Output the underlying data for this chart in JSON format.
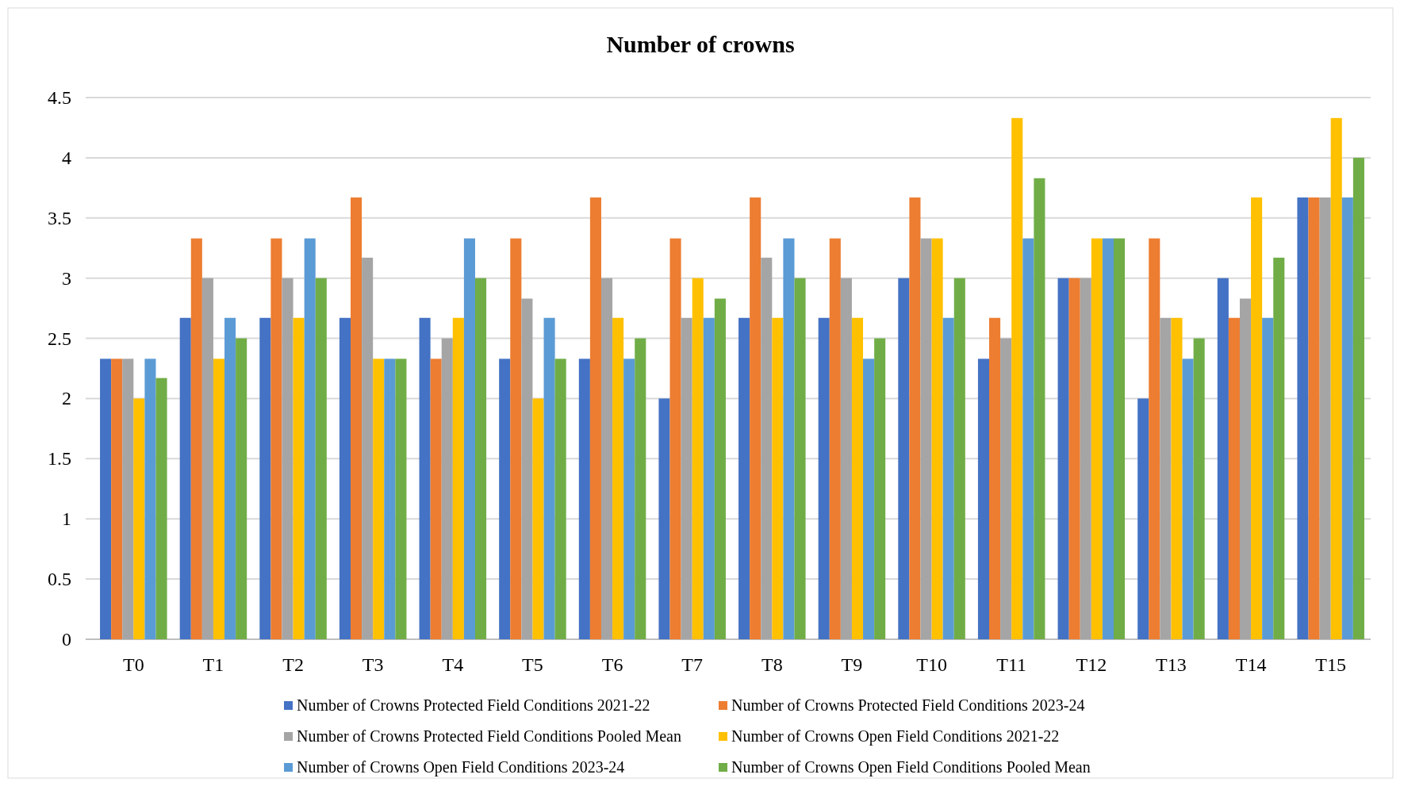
{
  "chart_data": {
    "type": "bar",
    "title": "Number of crowns",
    "categories": [
      "T0",
      "T1",
      "T2",
      "T3",
      "T4",
      "T5",
      "T6",
      "T7",
      "T8",
      "T9",
      "T10",
      "T11",
      "T12",
      "T13",
      "T14",
      "T15"
    ],
    "series": [
      {
        "name": "Number of Crowns Protected Field Conditions 2021-22",
        "color": "#4472c4",
        "values": [
          2.33,
          2.67,
          2.67,
          2.67,
          2.67,
          2.33,
          2.33,
          2.0,
          2.67,
          2.67,
          3.0,
          2.33,
          3.0,
          2.0,
          3.0,
          3.67
        ]
      },
      {
        "name": "Number of Crowns Protected Field Conditions 2023-24",
        "color": "#ed7d31",
        "values": [
          2.33,
          3.33,
          3.33,
          3.67,
          2.33,
          3.33,
          3.67,
          3.33,
          3.67,
          3.33,
          3.67,
          2.67,
          3.0,
          3.33,
          2.67,
          3.67
        ]
      },
      {
        "name": "Number of Crowns Protected Field Conditions Pooled Mean",
        "color": "#a5a5a5",
        "values": [
          2.33,
          3.0,
          3.0,
          3.17,
          2.5,
          2.83,
          3.0,
          2.67,
          3.17,
          3.0,
          3.33,
          2.5,
          3.0,
          2.67,
          2.83,
          3.67
        ]
      },
      {
        "name": "Number of Crowns Open Field Conditions 2021-22",
        "color": "#ffc000",
        "values": [
          2.0,
          2.33,
          2.67,
          2.33,
          2.67,
          2.0,
          2.67,
          3.0,
          2.67,
          2.67,
          3.33,
          4.33,
          3.33,
          2.67,
          3.67,
          4.33
        ]
      },
      {
        "name": "Number of Crowns Open Field Conditions 2023-24",
        "color": "#5b9bd5",
        "values": [
          2.33,
          2.67,
          3.33,
          2.33,
          3.33,
          2.67,
          2.33,
          2.67,
          3.33,
          2.33,
          2.67,
          3.33,
          3.33,
          2.33,
          2.67,
          3.67
        ]
      },
      {
        "name": "Number of Crowns Open Field Conditions Pooled Mean",
        "color": "#70ad47",
        "values": [
          2.17,
          2.5,
          3.0,
          2.33,
          3.0,
          2.33,
          2.5,
          2.83,
          3.0,
          2.5,
          3.0,
          3.83,
          3.33,
          2.5,
          3.17,
          4.0
        ]
      }
    ],
    "ylim": [
      0,
      4.5
    ],
    "yticks": [
      0,
      0.5,
      1,
      1.5,
      2,
      2.5,
      3,
      3.5,
      4,
      4.5
    ],
    "grid": "y",
    "legend": "bottom"
  }
}
